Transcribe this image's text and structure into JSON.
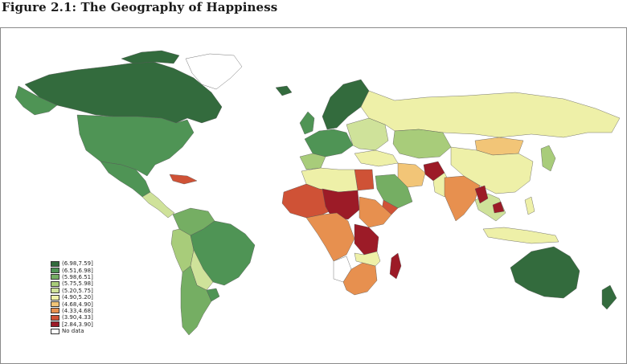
{
  "title": "Figure 2.1: The Geography of Happiness",
  "legend": [
    {
      "label": "(6.98,7.59]",
      "color": "#336b3d"
    },
    {
      "label": "(6.51,6.98]",
      "color": "#4f9455"
    },
    {
      "label": "(5.98,6.51]",
      "color": "#75ae63"
    },
    {
      "label": "(5.75,5.98]",
      "color": "#a8cc7a"
    },
    {
      "label": "(5.20,5.75]",
      "color": "#cfe29a"
    },
    {
      "label": "(4.90,5.20]",
      "color": "#eef0a8"
    },
    {
      "label": "(4.68,4.90]",
      "color": "#f2c577"
    },
    {
      "label": "(4.33,4.68]",
      "color": "#e7904f"
    },
    {
      "label": "(3.90,4.33]",
      "color": "#cf5236"
    },
    {
      "label": "[2.84,3.90]",
      "color": "#9c1b27"
    },
    {
      "label": "No data",
      "color": "#ffffff"
    }
  ]
}
